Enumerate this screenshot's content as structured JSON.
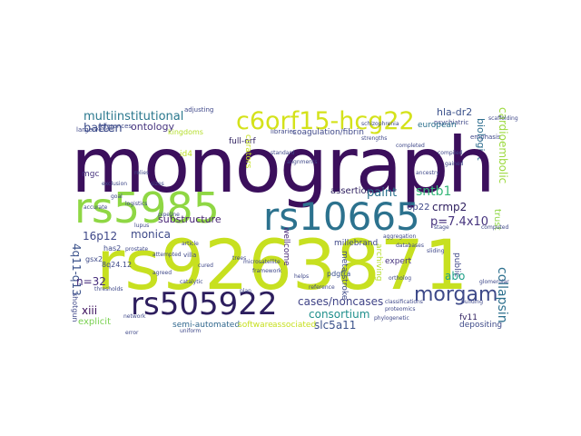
{
  "words": [
    {
      "text": "monograph",
      "color": "#3b0f5c"
    },
    {
      "text": "rs9263871",
      "color": "#c7e020"
    },
    {
      "text": "rs5985",
      "color": "#8fd744"
    },
    {
      "text": "rs10665",
      "color": "#2c728e"
    },
    {
      "text": "rs505922",
      "color": "#2d1e5e"
    },
    {
      "text": "morgam",
      "color": "#3e4a89"
    },
    {
      "text": "c6orf15-hcg22",
      "color": "#d4e21a"
    },
    {
      "text": "multiinstitutional",
      "color": "#2a788e"
    },
    {
      "text": "batten",
      "color": "#3d4d8a"
    },
    {
      "text": "ontology",
      "color": "#46337e"
    },
    {
      "text": "coagulation/fibrin",
      "color": "#3f4889"
    },
    {
      "text": "kingdoms",
      "color": "#b5de2b"
    },
    {
      "text": "european",
      "color": "#2c718e"
    },
    {
      "text": "hla-dr2",
      "color": "#3b518b"
    },
    {
      "text": "biologist",
      "color": "#2e6e8e"
    },
    {
      "text": "cardioembolic",
      "color": "#9bd93c"
    },
    {
      "text": "assertions",
      "color": "#35b779"
    },
    {
      "text": "sntb1",
      "color": "#2d1e5e"
    },
    {
      "text": "paint",
      "color": "#2c728e"
    },
    {
      "text": "crmp2",
      "color": "#2d1e5e"
    },
    {
      "text": "6p22",
      "color": "#3f4889"
    },
    {
      "text": "p=7.4x10",
      "color": "#46337e"
    },
    {
      "text": "substructure",
      "color": "#482374"
    },
    {
      "text": "16p12",
      "color": "#3f4889"
    },
    {
      "text": "monica",
      "color": "#3e4a89"
    },
    {
      "text": "4q11-q13",
      "color": "#3b528b"
    },
    {
      "text": "cases/noncases",
      "color": "#414487"
    },
    {
      "text": "abo",
      "color": "#1fa088"
    },
    {
      "text": "collapsin",
      "color": "#2d708e"
    },
    {
      "text": "consortium",
      "color": "#21908d"
    },
    {
      "text": "slc5a11",
      "color": "#3b528b"
    },
    {
      "text": "fv11",
      "color": "#2d1e5e"
    },
    {
      "text": "depositing",
      "color": "#3e4a89"
    },
    {
      "text": "xiii",
      "color": "#3b0f5c"
    },
    {
      "text": "explicit",
      "color": "#7ad151"
    },
    {
      "text": "semi-automated",
      "color": "#31688e"
    },
    {
      "text": "n=32",
      "color": "#472d7b"
    },
    {
      "text": "wellcome",
      "color": "#482878"
    },
    {
      "text": "millebrand",
      "color": "#3f4889"
    },
    {
      "text": "meta-stroke",
      "color": "#3e4a89"
    },
    {
      "text": "archiving",
      "color": "#b5de2b"
    },
    {
      "text": "expert",
      "color": "#46337e"
    },
    {
      "text": "public",
      "color": "#3f4889"
    },
    {
      "text": "mgc",
      "color": "#8fd744"
    },
    {
      "text": "full-orf",
      "color": "#46337e"
    },
    {
      "text": "trust",
      "color": "#2d1e5e"
    },
    {
      "text": "curators",
      "color": "#c7e020"
    },
    {
      "text": "id4",
      "color": "#bddf26"
    },
    {
      "text": "shotgun",
      "color": "#3f4889"
    },
    {
      "text": "gsx2",
      "color": "#3e4a89"
    },
    {
      "text": "has2",
      "color": "#3e4a89"
    },
    {
      "text": "8q24.12",
      "color": "#3e4a89"
    },
    {
      "text": "pdgfra",
      "color": "#3b528b"
    },
    {
      "text": "software",
      "color": "#c7e020"
    },
    {
      "text": "associated",
      "color": "#c7e020"
    },
    {
      "text": "databases",
      "color": "#3f4889"
    },
    {
      "text": "ortholog",
      "color": "#3f4889"
    },
    {
      "text": "reference",
      "color": "#3f4889"
    },
    {
      "text": "phylogenetic",
      "color": "#3f4889"
    },
    {
      "text": "completed",
      "color": "#3f4889"
    },
    {
      "text": "compiled",
      "color": "#3f4889"
    },
    {
      "text": "alignments",
      "color": "#3f4889"
    },
    {
      "text": "standard",
      "color": "#3f4889"
    },
    {
      "text": "framework",
      "color": "#3f4889"
    },
    {
      "text": "catalytic",
      "color": "#3f4889"
    },
    {
      "text": "network",
      "color": "#3f4889"
    },
    {
      "text": "pipeline",
      "color": "#3f4889"
    },
    {
      "text": "logistics",
      "color": "#3f4889"
    },
    {
      "text": "accurate",
      "color": "#3f4889"
    },
    {
      "text": "goal",
      "color": "#3f4889"
    },
    {
      "text": "villa",
      "color": "#3f4889"
    },
    {
      "text": "article",
      "color": "#3f4889"
    },
    {
      "text": "attempted",
      "color": "#3f4889"
    },
    {
      "text": "agreed",
      "color": "#3f4889"
    },
    {
      "text": "schizophrenia",
      "color": "#3f4889"
    },
    {
      "text": "helps",
      "color": "#3f4889"
    },
    {
      "text": "trees",
      "color": "#3f4889"
    },
    {
      "text": "cured",
      "color": "#3f4889"
    },
    {
      "text": "error",
      "color": "#3f4889"
    },
    {
      "text": "adjusting",
      "color": "#3f4889"
    },
    {
      "text": "emphasis",
      "color": "#3f4889"
    },
    {
      "text": "scaffolding",
      "color": "#3f4889"
    },
    {
      "text": "psychiatric",
      "color": "#3f4889"
    },
    {
      "text": "libraries",
      "color": "#3f4889"
    },
    {
      "text": "references",
      "color": "#3f4889"
    },
    {
      "text": "large-vessel",
      "color": "#3f4889"
    },
    {
      "text": "exclusion",
      "color": "#3f4889"
    },
    {
      "text": "sizes",
      "color": "#3f4889"
    },
    {
      "text": "gained",
      "color": "#3f4889"
    },
    {
      "text": "aggregation",
      "color": "#3f4889"
    },
    {
      "text": "relies",
      "color": "#3f4889"
    },
    {
      "text": "lupus",
      "color": "#3f4889"
    },
    {
      "text": "uniform",
      "color": "#3f4889"
    },
    {
      "text": "thresholds",
      "color": "#3f4889"
    },
    {
      "text": "building",
      "color": "#3f4889"
    },
    {
      "text": "stage",
      "color": "#3f4889"
    },
    {
      "text": "plan",
      "color": "#3f4889"
    },
    {
      "text": "strengths",
      "color": "#3f4889"
    },
    {
      "text": "classifications",
      "color": "#3f4889"
    },
    {
      "text": "proteomics",
      "color": "#3f4889"
    },
    {
      "text": "microsatellite",
      "color": "#3f4889"
    },
    {
      "text": "ancestry",
      "color": "#3f4889"
    },
    {
      "text": "computed",
      "color": "#3f4889"
    },
    {
      "text": "prostate",
      "color": "#3f4889"
    },
    {
      "text": "sliding",
      "color": "#3f4889"
    },
    {
      "text": "glomerular",
      "color": "#3f4889"
    }
  ]
}
